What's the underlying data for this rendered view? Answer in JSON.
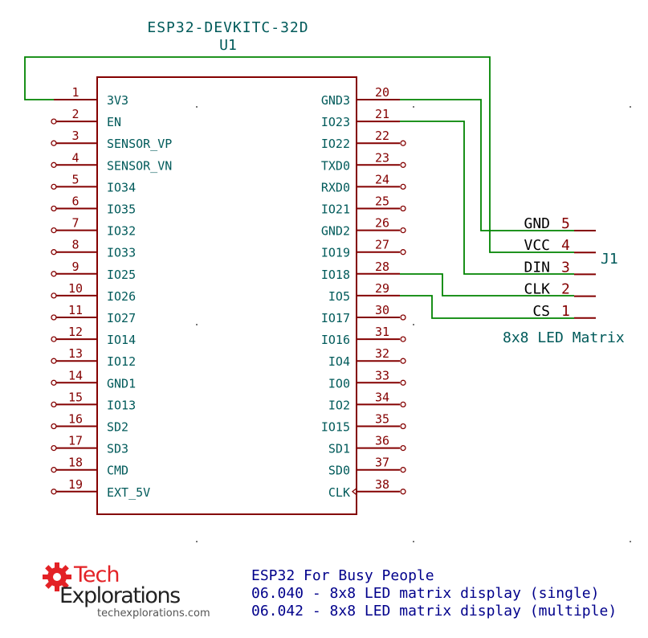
{
  "colors": {
    "body": "#840000",
    "pin": "#840000",
    "pin_name": "#005a5a",
    "ref": "#005a5a",
    "wire": "#008400",
    "title": "#00008b",
    "logo_red": "#e32226",
    "logo_text": "#222222"
  },
  "component": {
    "value": "ESP32-DEVKITC-32D",
    "ref": "U1",
    "left_pins": [
      {
        "num": "1",
        "name": "3V3"
      },
      {
        "num": "2",
        "name": "EN"
      },
      {
        "num": "3",
        "name": "SENSOR_VP"
      },
      {
        "num": "4",
        "name": "SENSOR_VN"
      },
      {
        "num": "5",
        "name": "IO34"
      },
      {
        "num": "6",
        "name": "IO35"
      },
      {
        "num": "7",
        "name": "IO32"
      },
      {
        "num": "8",
        "name": "IO33"
      },
      {
        "num": "9",
        "name": "IO25"
      },
      {
        "num": "10",
        "name": "IO26"
      },
      {
        "num": "11",
        "name": "IO27"
      },
      {
        "num": "12",
        "name": "IO14"
      },
      {
        "num": "13",
        "name": "IO12"
      },
      {
        "num": "14",
        "name": "GND1"
      },
      {
        "num": "15",
        "name": "IO13"
      },
      {
        "num": "16",
        "name": "SD2"
      },
      {
        "num": "17",
        "name": "SD3"
      },
      {
        "num": "18",
        "name": "CMD"
      },
      {
        "num": "19",
        "name": "EXT_5V"
      }
    ],
    "right_pins": [
      {
        "num": "20",
        "name": "GND3"
      },
      {
        "num": "21",
        "name": "IO23"
      },
      {
        "num": "22",
        "name": "IO22"
      },
      {
        "num": "23",
        "name": "TXD0"
      },
      {
        "num": "24",
        "name": "RXD0"
      },
      {
        "num": "25",
        "name": "IO21"
      },
      {
        "num": "26",
        "name": "GND2"
      },
      {
        "num": "27",
        "name": "IO19"
      },
      {
        "num": "28",
        "name": "IO18"
      },
      {
        "num": "29",
        "name": "IO5"
      },
      {
        "num": "30",
        "name": "IO17"
      },
      {
        "num": "31",
        "name": "IO16"
      },
      {
        "num": "32",
        "name": "IO4"
      },
      {
        "num": "33",
        "name": "IO0"
      },
      {
        "num": "34",
        "name": "IO2"
      },
      {
        "num": "35",
        "name": "IO15"
      },
      {
        "num": "36",
        "name": "SD1"
      },
      {
        "num": "37",
        "name": "SD0"
      },
      {
        "num": "38",
        "name": "CLK"
      }
    ]
  },
  "connector": {
    "ref": "J1",
    "value": "8x8 LED Matrix",
    "pins": [
      {
        "num": "5",
        "name": "GND"
      },
      {
        "num": "4",
        "name": "VCC"
      },
      {
        "num": "3",
        "name": "DIN"
      },
      {
        "num": "2",
        "name": "CLK"
      },
      {
        "num": "1",
        "name": "CS"
      }
    ]
  },
  "title_block": {
    "line1": "ESP32 For Busy People",
    "line2": "06.040 - 8x8 LED matrix display (single)",
    "line3": "06.042 - 8x8 LED matrix display (multiple)"
  },
  "logo": {
    "word1": "Tech",
    "word2": "Explorations",
    "url": "techexplorations.com"
  }
}
